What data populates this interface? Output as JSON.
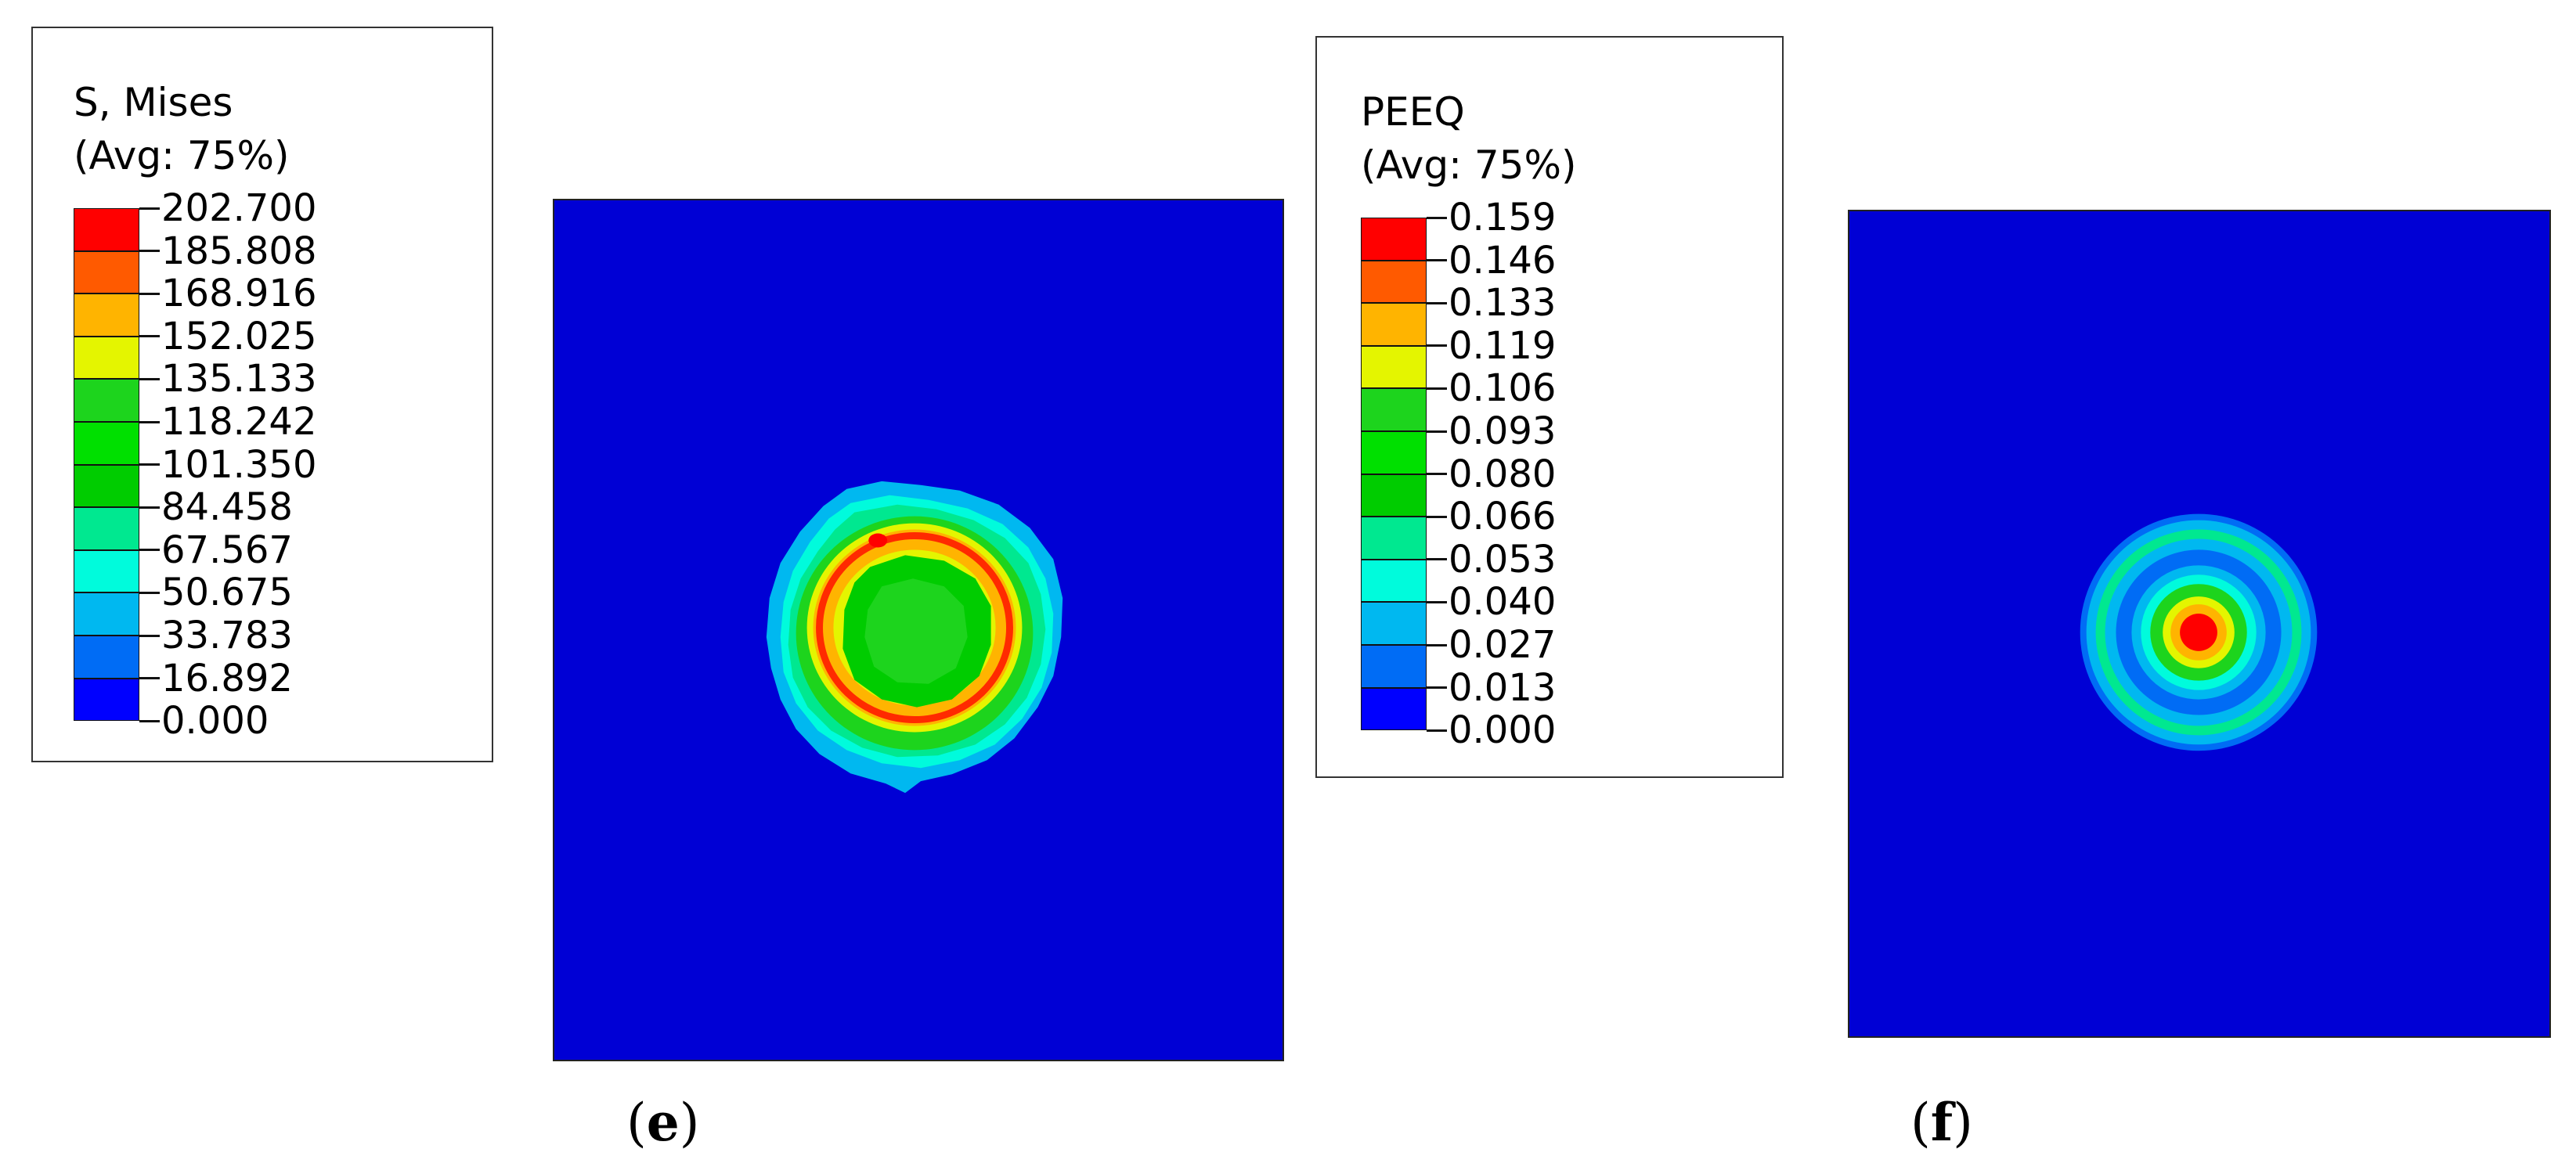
{
  "panel_e": {
    "legend": {
      "title_line1": "S, Mises",
      "title_line2": "(Avg: 75%)",
      "levels": [
        {
          "label": "202.700",
          "color": "#ff0000"
        },
        {
          "label": "185.808",
          "color": "#ff5a00"
        },
        {
          "label": "168.916",
          "color": "#ffb400"
        },
        {
          "label": "152.025",
          "color": "#e4f500"
        },
        {
          "label": "135.133",
          "color": "#1dd41d"
        },
        {
          "label": "118.242",
          "color": "#00e000"
        },
        {
          "label": "101.350",
          "color": "#00cc00"
        },
        {
          "label": "84.458",
          "color": "#00e890"
        },
        {
          "label": "67.567",
          "color": "#00fbdc"
        },
        {
          "label": "50.675",
          "color": "#00b8f0"
        },
        {
          "label": "33.783",
          "color": "#006cf5"
        },
        {
          "label": "16.892",
          "color": "#0000ff"
        },
        {
          "label": "0.000",
          "color": null
        }
      ]
    },
    "caption_open": "(",
    "caption_letter": "e",
    "caption_close": ")"
  },
  "panel_f": {
    "legend": {
      "title_line1": "PEEQ",
      "title_line2": "(Avg: 75%)",
      "levels": [
        {
          "label": "0.159",
          "color": "#ff0000"
        },
        {
          "label": "0.146",
          "color": "#ff5a00"
        },
        {
          "label": "0.133",
          "color": "#ffb400"
        },
        {
          "label": "0.119",
          "color": "#e4f500"
        },
        {
          "label": "0.106",
          "color": "#1dd41d"
        },
        {
          "label": "0.093",
          "color": "#00e000"
        },
        {
          "label": "0.080",
          "color": "#00cc00"
        },
        {
          "label": "0.066",
          "color": "#00e890"
        },
        {
          "label": "0.053",
          "color": "#00fbdc"
        },
        {
          "label": "0.040",
          "color": "#00b8f0"
        },
        {
          "label": "0.027",
          "color": "#006cf5"
        },
        {
          "label": "0.013",
          "color": "#0000ff"
        },
        {
          "label": "0.000",
          "color": null
        }
      ]
    },
    "caption_open": "(",
    "caption_letter": "f",
    "caption_close": ")"
  },
  "colors": {
    "background_field": "#0000d5",
    "frame": "#222222"
  }
}
